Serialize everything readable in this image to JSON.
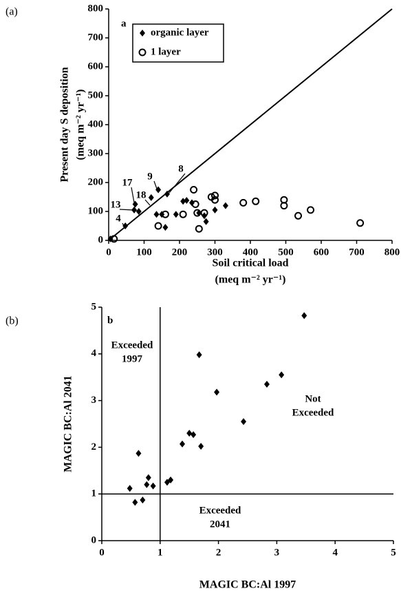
{
  "chart_data": [
    {
      "type": "scatter",
      "panel_label": "(a)",
      "panel_letter": "a",
      "x_label": "Soil critical load",
      "x_label_units": "(meq m⁻² yr⁻¹)",
      "y_label": "Present day S deposition",
      "y_label_units": "(meq m⁻² yr⁻¹)",
      "xlim": [
        0,
        800
      ],
      "xticks": [
        0,
        100,
        200,
        300,
        400,
        500,
        600,
        700,
        800
      ],
      "ylim": [
        0,
        800
      ],
      "yticks": [
        0,
        100,
        200,
        300,
        400,
        500,
        600,
        700,
        800
      ],
      "legend": "upper left",
      "one_to_one_line": true,
      "annotations": [
        "4",
        "13",
        "17",
        "18",
        "9",
        "8"
      ],
      "series": [
        {
          "name": "organic layer",
          "marker": "diamond",
          "color": "#000",
          "x": [
            5,
            47,
            72,
            75,
            85,
            120,
            140,
            165,
            135,
            150,
            160,
            190,
            210,
            220,
            235,
            255,
            270,
            275,
            300,
            330
          ],
          "values": [
            5,
            50,
            105,
            125,
            100,
            148,
            175,
            160,
            90,
            90,
            45,
            90,
            135,
            138,
            130,
            95,
            85,
            65,
            105,
            120
          ]
        },
        {
          "name": "1 layer",
          "marker": "circle",
          "color": "#000",
          "x": [
            15,
            140,
            160,
            210,
            240,
            245,
            250,
            255,
            270,
            290,
            300,
            300,
            380,
            415,
            495,
            495,
            535,
            570,
            710
          ],
          "values": [
            5,
            50,
            90,
            90,
            175,
            125,
            95,
            40,
            95,
            150,
            155,
            140,
            130,
            135,
            140,
            120,
            85,
            105,
            60
          ]
        }
      ]
    },
    {
      "type": "scatter",
      "panel_label": "(b)",
      "panel_letter": "b",
      "x_label": "MAGIC BC:Al 1997",
      "y_label": "MAGIC BC:Al 2041",
      "xlim": [
        0,
        5
      ],
      "xticks": [
        0,
        1,
        2,
        3,
        4,
        5
      ],
      "ylim": [
        0,
        5
      ],
      "yticks": [
        0,
        1,
        2,
        3,
        4,
        5
      ],
      "threshold_x": 1,
      "threshold_y": 1,
      "region_labels": [
        [
          "Exceeded",
          "1997"
        ],
        [
          "Not",
          "Exceeded"
        ],
        [
          "Exceeded",
          "2041"
        ]
      ],
      "series": [
        {
          "marker": "diamond",
          "color": "#000",
          "x": [
            0.48,
            0.57,
            0.63,
            0.7,
            0.77,
            0.8,
            0.88,
            1.12,
            1.18,
            1.38,
            1.5,
            1.57,
            1.67,
            1.7,
            1.97,
            2.43,
            2.83,
            3.08,
            3.47
          ],
          "values": [
            1.12,
            0.82,
            1.87,
            0.87,
            1.2,
            1.35,
            1.17,
            1.25,
            1.3,
            2.07,
            2.3,
            2.27,
            3.98,
            2.02,
            3.18,
            2.55,
            3.35,
            3.55,
            4.82
          ]
        }
      ]
    }
  ]
}
